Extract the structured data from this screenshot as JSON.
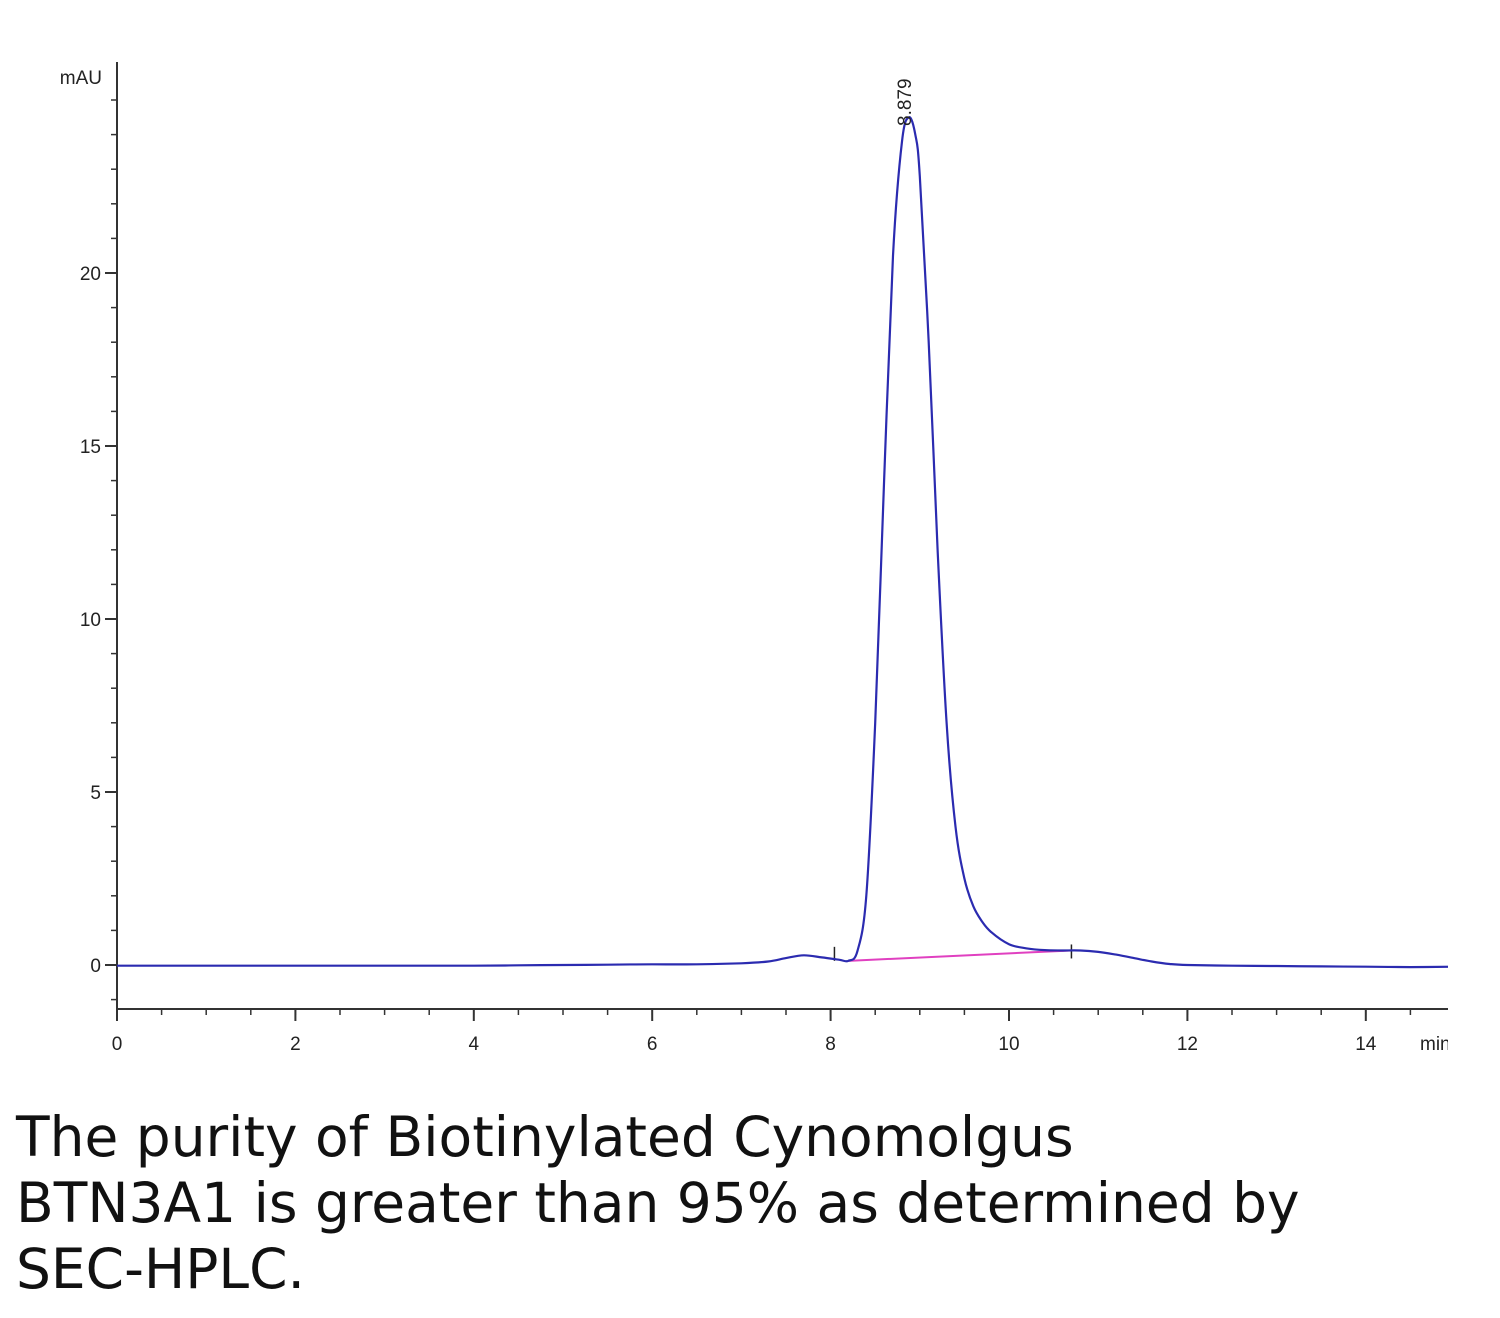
{
  "chart_data": {
    "type": "line",
    "ylabel": "mAU",
    "xlabel": "min",
    "xlim": [
      0,
      15
    ],
    "ylim": [
      -1.3,
      26
    ],
    "x_ticks": [
      0,
      2,
      4,
      6,
      8,
      10,
      12,
      14
    ],
    "y_ticks": [
      0,
      5,
      10,
      15,
      20
    ],
    "peak_label": "8.879",
    "colors": {
      "trace": "#2b2bb0",
      "baseline": "#e040c0",
      "axis": "#333333"
    },
    "series": [
      {
        "x": [
          0,
          1,
          2,
          3,
          4,
          4.5,
          5,
          5.5,
          6,
          6.5,
          7,
          7.3,
          7.5,
          7.7,
          7.9,
          8.1,
          8.2,
          8.3,
          8.4,
          8.5,
          8.6,
          8.7,
          8.8,
          8.879,
          8.95,
          9.0,
          9.1,
          9.2,
          9.3,
          9.4,
          9.5,
          9.6,
          9.7,
          9.8,
          10.0,
          10.2,
          10.4,
          10.6,
          10.8,
          11.0,
          11.2,
          11.4,
          11.6,
          11.8,
          12.0,
          12.5,
          13.0,
          13.5,
          14.0,
          14.5,
          15.0
        ],
        "values": [
          -0.02,
          -0.02,
          -0.02,
          -0.02,
          -0.02,
          -0.01,
          0.0,
          0.01,
          0.02,
          0.02,
          0.05,
          0.1,
          0.2,
          0.28,
          0.22,
          0.15,
          0.12,
          0.4,
          2.0,
          7.0,
          14.0,
          20.5,
          23.8,
          24.5,
          24.0,
          22.8,
          18.0,
          12.0,
          7.0,
          4.0,
          2.5,
          1.7,
          1.25,
          0.95,
          0.6,
          0.48,
          0.43,
          0.42,
          0.42,
          0.38,
          0.3,
          0.2,
          0.1,
          0.03,
          0.0,
          -0.02,
          -0.03,
          -0.04,
          -0.05,
          -0.06,
          -0.05
        ]
      }
    ],
    "integration_baseline": {
      "x": [
        8.2,
        10.7
      ],
      "values": [
        0.12,
        0.42
      ]
    }
  },
  "caption": "The purity of Biotinylated Cynomolgus\nBTN3A1 is greater than 95% as determined by\nSEC-HPLC."
}
